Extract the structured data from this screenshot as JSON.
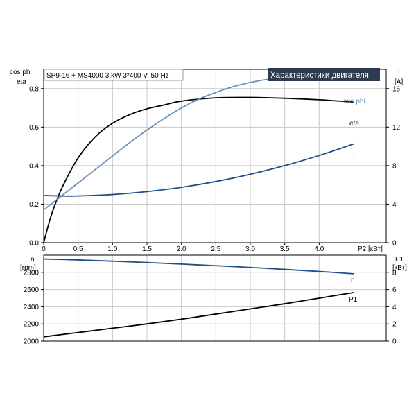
{
  "chart_data": [
    {
      "type": "line",
      "title": "Характеристики двигателя",
      "info": "SP9-16 + MS4000   3 kW   3*400 V, 50 Hz",
      "xlabel": "P2 [кВт]",
      "ylabel_left": [
        "cos phi",
        "eta"
      ],
      "ylabel_right": [
        "I",
        "[A]"
      ],
      "xlim": [
        0,
        4.5
      ],
      "xticks": [
        "0",
        "0.5",
        "1.0",
        "1.5",
        "2.0",
        "2.5",
        "3.0",
        "3.5",
        "4.0"
      ],
      "ylim_left": [
        0,
        0.9
      ],
      "yticks_left": [
        "0.0",
        "0.2",
        "0.4",
        "0.6",
        "0.8"
      ],
      "ylim_right": [
        0,
        18
      ],
      "yticks_right": [
        "0",
        "4",
        "8",
        "12",
        "16"
      ],
      "grid": true,
      "series": [
        {
          "name": "eta",
          "axis": "left",
          "color": "#000000",
          "x": [
            0,
            0.1,
            0.2,
            0.3,
            0.5,
            0.75,
            1.0,
            1.25,
            1.5,
            1.75,
            2.0,
            2.5,
            3.0,
            3.5,
            4.0,
            4.5
          ],
          "y": [
            0,
            0.13,
            0.23,
            0.31,
            0.44,
            0.55,
            0.62,
            0.665,
            0.695,
            0.715,
            0.735,
            0.752,
            0.754,
            0.75,
            0.742,
            0.73
          ]
        },
        {
          "name": "cos phi",
          "axis": "left",
          "color": "#6a90b8",
          "x": [
            0,
            0.25,
            0.5,
            0.75,
            1.0,
            1.25,
            1.5,
            1.75,
            2.0,
            2.25,
            2.5,
            2.75,
            3.0,
            3.25,
            3.5,
            4.0,
            4.5
          ],
          "y": [
            0.17,
            0.24,
            0.31,
            0.38,
            0.45,
            0.52,
            0.585,
            0.645,
            0.7,
            0.745,
            0.78,
            0.81,
            0.832,
            0.848,
            0.858,
            0.868,
            0.872
          ]
        },
        {
          "name": "I",
          "axis": "right",
          "color": "#1f4e8c",
          "x": [
            0,
            0.25,
            0.5,
            1.0,
            1.5,
            2.0,
            2.5,
            3.0,
            3.5,
            4.0,
            4.5
          ],
          "y": [
            4.9,
            4.85,
            4.85,
            5.0,
            5.3,
            5.75,
            6.35,
            7.1,
            8.0,
            9.05,
            10.25
          ]
        }
      ]
    },
    {
      "type": "line",
      "ylabel_left": [
        "n",
        "[rpm]"
      ],
      "ylabel_right": [
        "P1",
        "[кВт]"
      ],
      "xlim": [
        0,
        4.5
      ],
      "ylim_left": [
        2000,
        3000
      ],
      "yticks_left": [
        "2000",
        "2200",
        "2400",
        "2600",
        "2800"
      ],
      "ylim_right": [
        0,
        10
      ],
      "yticks_right": [
        "0",
        "2",
        "4",
        "6",
        "8"
      ],
      "grid": true,
      "series": [
        {
          "name": "n",
          "axis": "left",
          "color": "#1f4e8c",
          "x": [
            0,
            0.5,
            1.0,
            1.5,
            2.0,
            2.5,
            3.0,
            3.5,
            4.0,
            4.5
          ],
          "y": [
            2955,
            2944,
            2930,
            2914,
            2896,
            2877,
            2857,
            2834,
            2810,
            2783
          ]
        },
        {
          "name": "P1",
          "axis": "right",
          "color": "#000000",
          "x": [
            0,
            0.5,
            1.0,
            1.5,
            2.0,
            2.5,
            3.0,
            3.5,
            4.0,
            4.5
          ],
          "y": [
            0.5,
            1.0,
            1.5,
            2.0,
            2.55,
            3.15,
            3.75,
            4.35,
            5.0,
            5.65
          ]
        }
      ]
    }
  ]
}
